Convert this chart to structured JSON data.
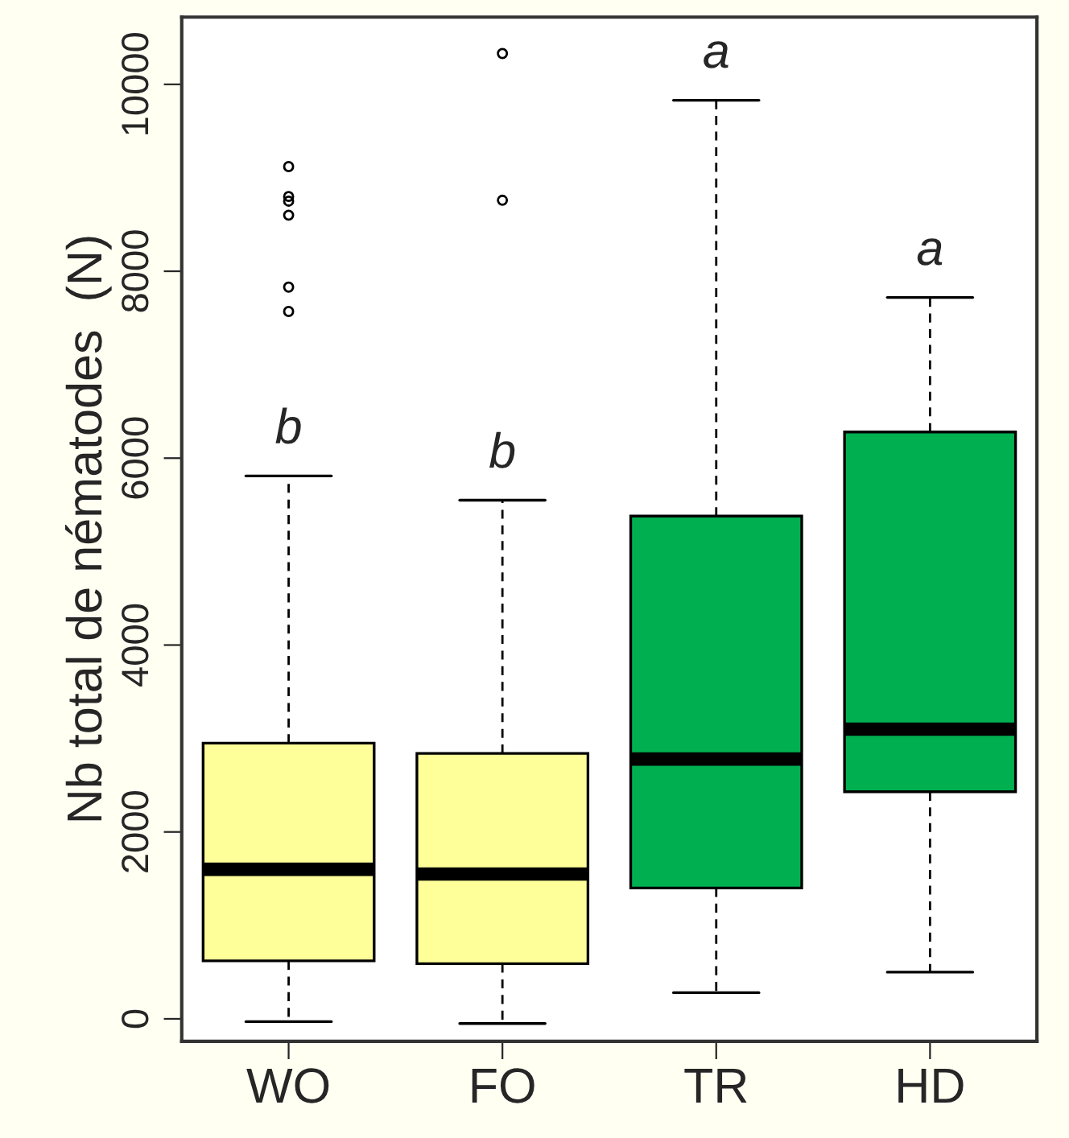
{
  "chart_data": {
    "type": "box",
    "ylabel": "Nb total de nématodes  (N)",
    "categories": [
      "WO",
      "FO",
      "TR",
      "HD"
    ],
    "colors": [
      "#ffff99",
      "#ffff99",
      "#00b050",
      "#00b050"
    ],
    "boxes": [
      {
        "low": -30,
        "q1": 620,
        "median": 1600,
        "q3": 2950,
        "high": 5810,
        "outliers": [
          9120,
          8800,
          8750,
          8600,
          7830,
          7570
        ]
      },
      {
        "low": -50,
        "q1": 590,
        "median": 1550,
        "q3": 2840,
        "high": 5550,
        "outliers": [
          10330,
          8760
        ]
      },
      {
        "low": 280,
        "q1": 1400,
        "median": 2780,
        "q3": 5380,
        "high": 9830
      },
      {
        "low": 500,
        "q1": 2430,
        "median": 3100,
        "q3": 6280,
        "high": 7720
      }
    ],
    "ylim": [
      -240,
      10720
    ],
    "yticks": [
      0,
      2000,
      4000,
      6000,
      8000,
      10000
    ],
    "grid": false,
    "annotations": [
      "b",
      "b",
      "a",
      "a"
    ]
  }
}
